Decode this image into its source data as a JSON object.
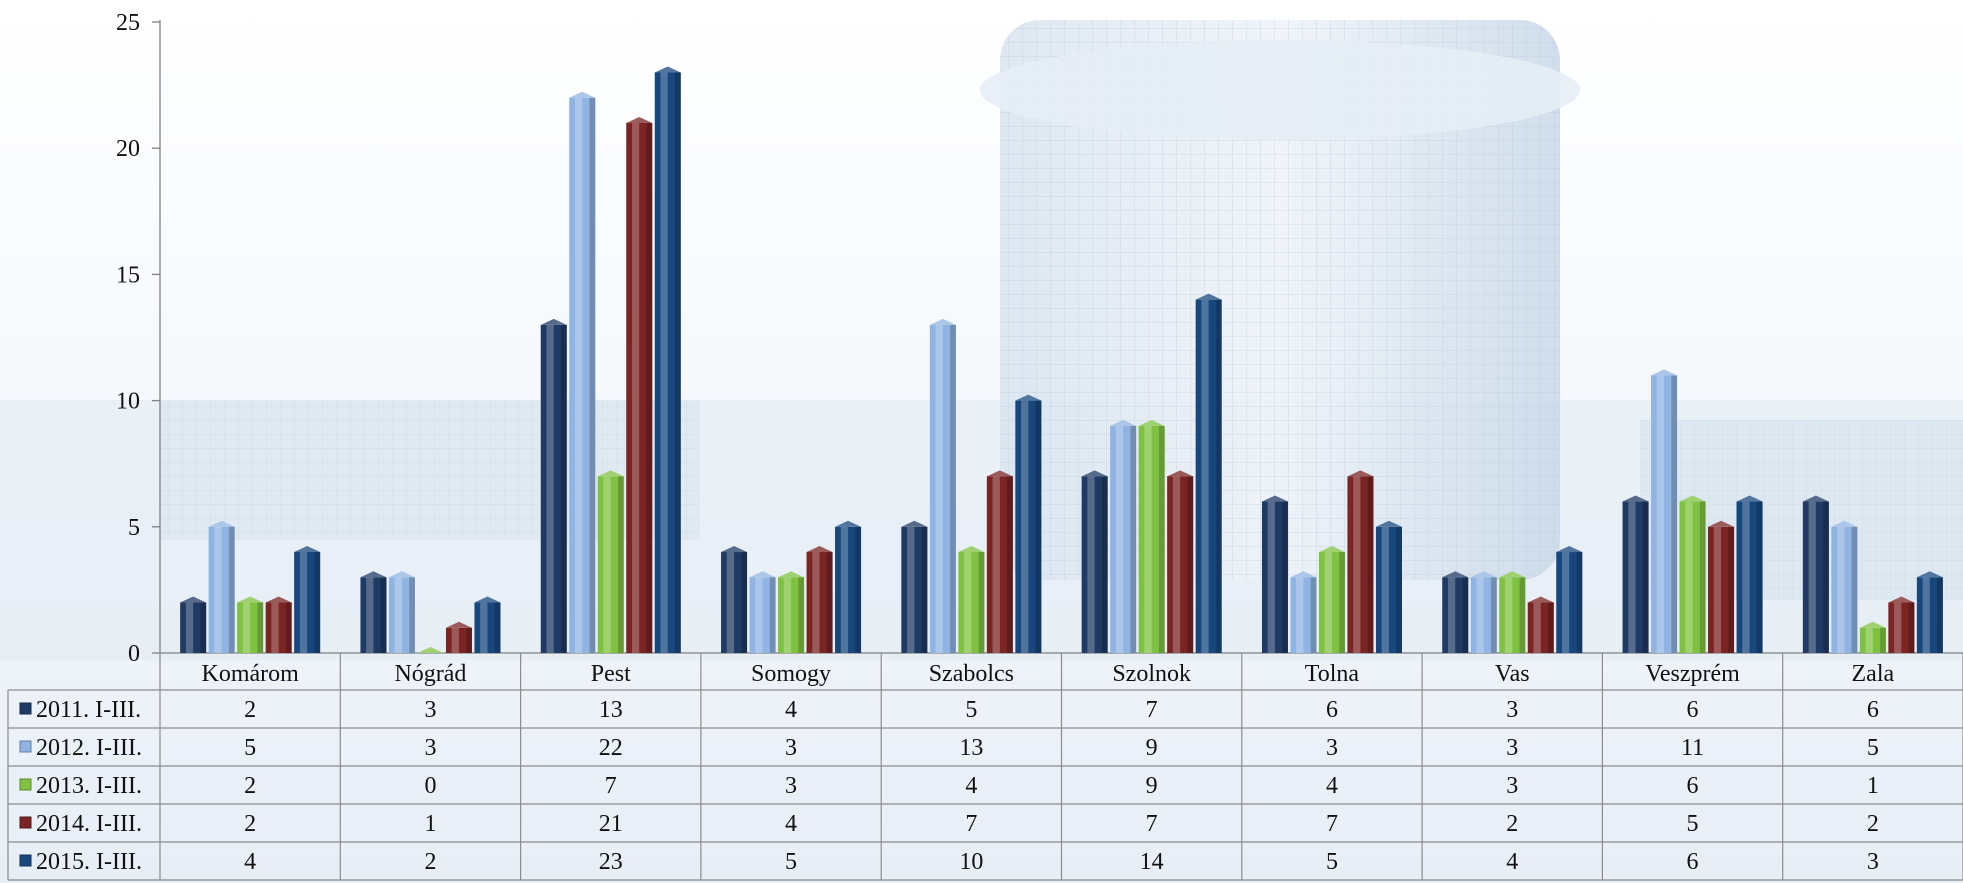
{
  "chart_data": {
    "type": "bar",
    "categories": [
      "Komárom",
      "Nógrád",
      "Pest",
      "Somogy",
      "Szabolcs",
      "Szolnok",
      "Tolna",
      "Vas",
      "Veszprém",
      "Zala"
    ],
    "series": [
      {
        "name": "2011. I-III.",
        "color": "#1f3a64",
        "values": [
          2,
          3,
          13,
          4,
          5,
          7,
          6,
          3,
          6,
          6
        ]
      },
      {
        "name": "2012. I-III.",
        "color": "#8fb3e2",
        "values": [
          5,
          3,
          22,
          3,
          13,
          9,
          3,
          3,
          11,
          5
        ]
      },
      {
        "name": "2013. I-III.",
        "color": "#7fc242",
        "values": [
          2,
          0,
          7,
          3,
          4,
          9,
          4,
          3,
          6,
          1
        ]
      },
      {
        "name": "2014. I-III.",
        "color": "#7a2424",
        "values": [
          2,
          1,
          21,
          4,
          7,
          7,
          7,
          2,
          5,
          2
        ]
      },
      {
        "name": "2015. I-III.",
        "color": "#17477d",
        "values": [
          4,
          2,
          23,
          5,
          10,
          14,
          5,
          4,
          6,
          3
        ]
      }
    ],
    "ylim": [
      0,
      25
    ],
    "yticks": [
      0,
      5,
      10,
      15,
      20,
      25
    ],
    "data_table": true,
    "background": "faded office building photograph"
  }
}
